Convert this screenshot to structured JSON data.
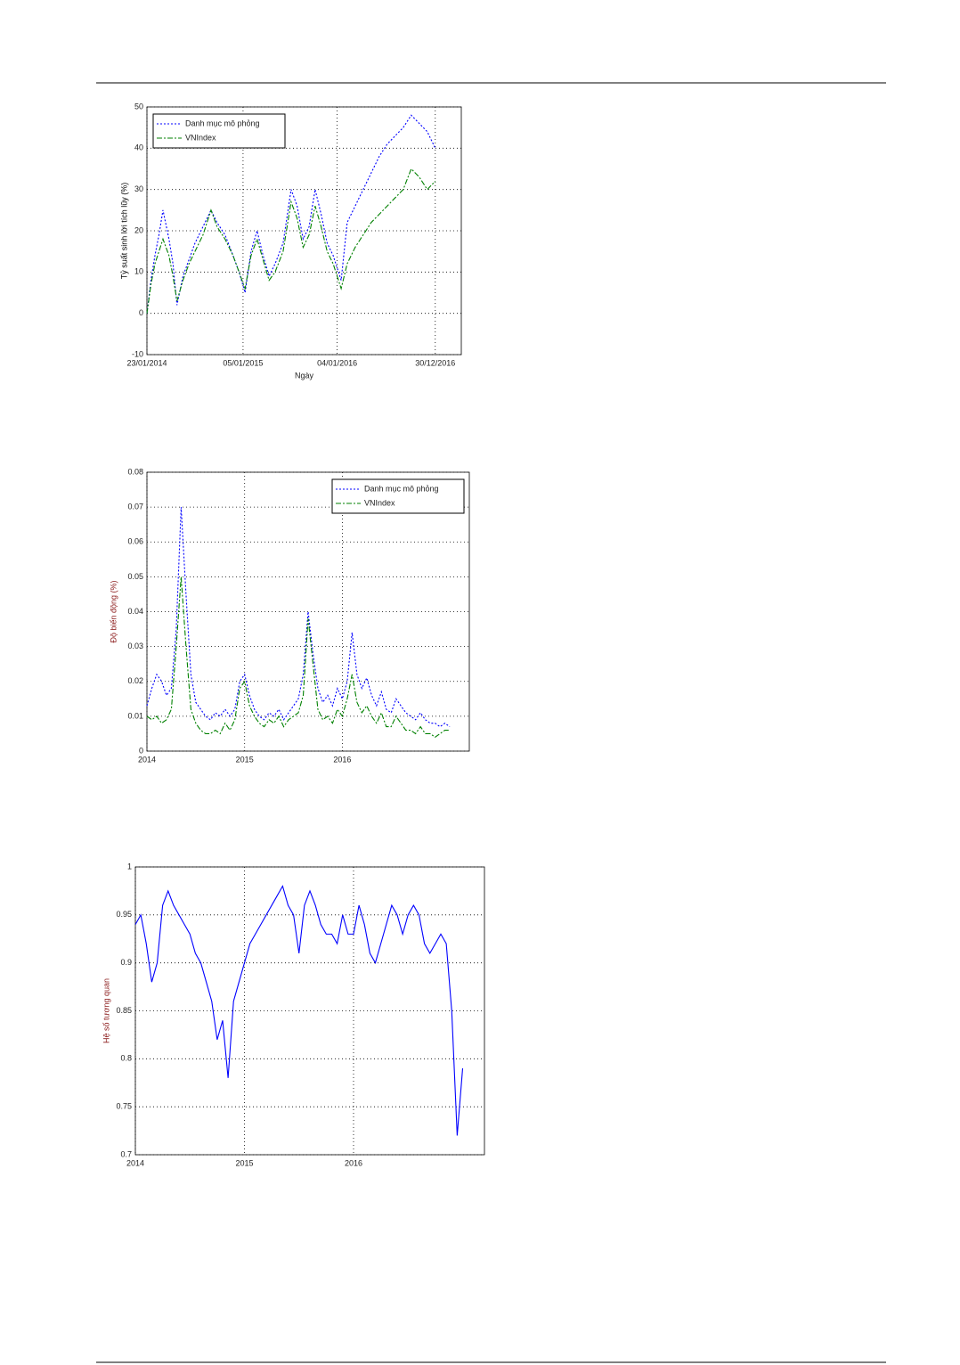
{
  "chart_data": [
    {
      "type": "line",
      "ylabel": "Tỷ suất sinh lời tích lũy (%)",
      "xlabel": "Ngày",
      "ylabel_color": "#000000",
      "legend": "upper left",
      "grid": true,
      "xlim": [
        0,
        785
      ],
      "ylim": [
        -10,
        50
      ],
      "xticks": [
        {
          "value": 0,
          "label": "23/01/2014"
        },
        {
          "value": 240,
          "label": "05/01/2015"
        },
        {
          "value": 475,
          "label": "04/01/2016"
        },
        {
          "value": 720,
          "label": "30/12/2016"
        }
      ],
      "yticks": [
        -10,
        0,
        10,
        20,
        30,
        40,
        50
      ],
      "x": [
        0,
        10,
        20,
        30,
        40,
        55,
        65,
        75,
        90,
        105,
        120,
        140,
        160,
        175,
        195,
        215,
        230,
        245,
        260,
        275,
        290,
        305,
        320,
        340,
        360,
        375,
        390,
        405,
        420,
        435,
        450,
        465,
        485,
        500,
        520,
        540,
        560,
        580,
        600,
        620,
        640,
        660,
        680,
        700,
        720
      ],
      "series": [
        {
          "name": "Danh mục mô phỏng",
          "color": "#0000ff",
          "values": [
            0,
            8,
            14,
            19,
            25,
            18,
            12,
            2,
            9,
            13,
            17,
            21,
            25,
            22,
            19,
            14,
            10,
            5,
            15,
            20,
            14,
            9,
            12,
            17,
            30,
            26,
            18,
            21,
            30,
            24,
            17,
            14,
            8,
            22,
            26,
            30,
            34,
            38,
            41,
            43,
            45,
            48,
            46,
            44,
            40
          ]
        },
        {
          "name": "VNIndex",
          "color": "#008000",
          "values": [
            0,
            7,
            12,
            15,
            18,
            14,
            9,
            3,
            8,
            12,
            15,
            19,
            25,
            21,
            18,
            14,
            10,
            6,
            14,
            18,
            13,
            8,
            10,
            15,
            27,
            23,
            16,
            19,
            26,
            21,
            15,
            12,
            6,
            12,
            16,
            19,
            22,
            24,
            26,
            28,
            30,
            35,
            33,
            30,
            32
          ]
        }
      ]
    },
    {
      "type": "line",
      "ylabel": "Độ biến động (%)",
      "ylabel_color": "#8b1a1a",
      "legend": "upper right",
      "grid": true,
      "xlim": [
        2014,
        2017.3
      ],
      "ylim": [
        0,
        0.08
      ],
      "xticks": [
        2014,
        2015,
        2016
      ],
      "yticks": [
        0,
        0.01,
        0.02,
        0.03,
        0.04,
        0.05,
        0.06,
        0.07,
        0.08
      ],
      "x": [
        2014,
        2014.05,
        2014.1,
        2014.15,
        2014.2,
        2014.25,
        2014.3,
        2014.35,
        2014.4,
        2014.45,
        2014.5,
        2014.55,
        2014.6,
        2014.65,
        2014.7,
        2014.75,
        2014.8,
        2014.85,
        2014.9,
        2014.95,
        2015,
        2015.05,
        2015.1,
        2015.15,
        2015.2,
        2015.25,
        2015.3,
        2015.35,
        2015.4,
        2015.45,
        2015.5,
        2015.55,
        2015.6,
        2015.65,
        2015.7,
        2015.75,
        2015.8,
        2015.85,
        2015.9,
        2015.95,
        2016,
        2016.05,
        2016.1,
        2016.15,
        2016.2,
        2016.25,
        2016.3,
        2016.35,
        2016.4,
        2016.45,
        2016.5,
        2016.55,
        2016.6,
        2016.65,
        2016.7,
        2016.75,
        2016.8,
        2016.85,
        2016.9,
        2016.95,
        2017,
        2017.05,
        2017.1
      ],
      "series": [
        {
          "name": "Danh mục mô phỏng",
          "color": "#0000ff",
          "values": [
            0.013,
            0.018,
            0.022,
            0.02,
            0.016,
            0.018,
            0.035,
            0.07,
            0.045,
            0.022,
            0.014,
            0.012,
            0.01,
            0.009,
            0.011,
            0.01,
            0.012,
            0.01,
            0.012,
            0.02,
            0.022,
            0.016,
            0.012,
            0.01,
            0.009,
            0.011,
            0.01,
            0.012,
            0.009,
            0.011,
            0.013,
            0.015,
            0.022,
            0.04,
            0.028,
            0.018,
            0.014,
            0.016,
            0.013,
            0.018,
            0.015,
            0.02,
            0.034,
            0.022,
            0.018,
            0.021,
            0.016,
            0.013,
            0.017,
            0.012,
            0.011,
            0.015,
            0.013,
            0.011,
            0.01,
            0.009,
            0.011,
            0.009,
            0.008,
            0.008,
            0.007,
            0.008,
            0.007
          ]
        },
        {
          "name": "VNIndex",
          "color": "#008000",
          "values": [
            0.01,
            0.009,
            0.01,
            0.008,
            0.009,
            0.012,
            0.03,
            0.05,
            0.03,
            0.012,
            0.008,
            0.006,
            0.005,
            0.005,
            0.006,
            0.005,
            0.008,
            0.006,
            0.009,
            0.018,
            0.02,
            0.013,
            0.01,
            0.008,
            0.007,
            0.009,
            0.008,
            0.01,
            0.007,
            0.009,
            0.01,
            0.011,
            0.016,
            0.038,
            0.025,
            0.012,
            0.009,
            0.01,
            0.008,
            0.012,
            0.01,
            0.015,
            0.022,
            0.014,
            0.011,
            0.013,
            0.01,
            0.008,
            0.011,
            0.007,
            0.007,
            0.01,
            0.008,
            0.006,
            0.006,
            0.005,
            0.007,
            0.005,
            0.005,
            0.004,
            0.005,
            0.006,
            0.006
          ]
        }
      ]
    },
    {
      "type": "line",
      "ylabel": "Hệ số tương quan",
      "ylabel_color": "#8b1a1a",
      "grid": true,
      "xlim": [
        2014,
        2017.2
      ],
      "ylim": [
        0.7,
        1
      ],
      "xticks": [
        2014,
        2015,
        2016
      ],
      "yticks": [
        0.7,
        0.75,
        0.8,
        0.85,
        0.9,
        0.95,
        1
      ],
      "x": [
        2014,
        2014.05,
        2014.1,
        2014.15,
        2014.2,
        2014.25,
        2014.3,
        2014.35,
        2014.4,
        2014.45,
        2014.5,
        2014.55,
        2014.6,
        2014.65,
        2014.7,
        2014.75,
        2014.8,
        2014.85,
        2014.9,
        2014.95,
        2015,
        2015.05,
        2015.1,
        2015.15,
        2015.2,
        2015.25,
        2015.3,
        2015.35,
        2015.4,
        2015.45,
        2015.5,
        2015.55,
        2015.6,
        2015.65,
        2015.7,
        2015.75,
        2015.8,
        2015.85,
        2015.9,
        2015.95,
        2016,
        2016.05,
        2016.1,
        2016.15,
        2016.2,
        2016.25,
        2016.3,
        2016.35,
        2016.4,
        2016.45,
        2016.5,
        2016.55,
        2016.6,
        2016.65,
        2016.7,
        2016.75,
        2016.8,
        2016.85,
        2016.9,
        2016.95,
        2017
      ],
      "series": [
        {
          "color": "#0000ff",
          "values": [
            0.94,
            0.95,
            0.92,
            0.88,
            0.9,
            0.96,
            0.975,
            0.96,
            0.95,
            0.94,
            0.93,
            0.91,
            0.9,
            0.88,
            0.86,
            0.82,
            0.84,
            0.78,
            0.86,
            0.88,
            0.9,
            0.92,
            0.93,
            0.94,
            0.95,
            0.96,
            0.97,
            0.98,
            0.96,
            0.95,
            0.91,
            0.96,
            0.975,
            0.96,
            0.94,
            0.93,
            0.93,
            0.92,
            0.95,
            0.93,
            0.93,
            0.96,
            0.94,
            0.91,
            0.9,
            0.92,
            0.94,
            0.96,
            0.95,
            0.93,
            0.95,
            0.96,
            0.95,
            0.92,
            0.91,
            0.92,
            0.93,
            0.92,
            0.85,
            0.72,
            0.79
          ]
        }
      ]
    }
  ]
}
